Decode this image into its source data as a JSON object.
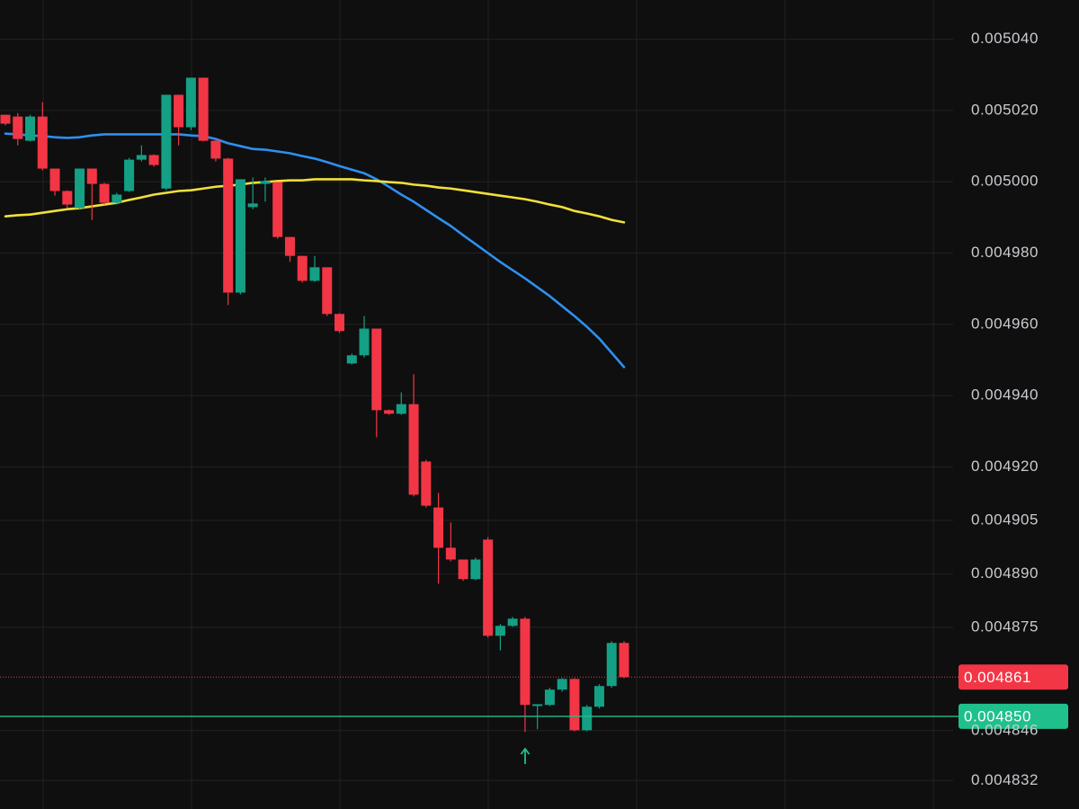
{
  "chart_data": {
    "type": "candlestick",
    "up_color": "#14a085",
    "down_color": "#f23645",
    "open": [
      0.0050188,
      0.0050183,
      0.0050115,
      0.0050183,
      0.0050037,
      0.0049974,
      0.0049926,
      0.0050037,
      0.0049994,
      0.0049941,
      0.0049974,
      0.0050062,
      0.0050075,
      0.0049981,
      0.0050244,
      0.0050153,
      0.0050292,
      0.0050115,
      0.0050065,
      0.0049689,
      0.0049929,
      0.0049994,
      0.0049999,
      0.0049845,
      0.0049792,
      0.0049722,
      0.004976,
      0.0049629,
      0.004949,
      0.0049513,
      0.0049588,
      0.0049359,
      0.0049349,
      0.0049376,
      0.0049215,
      0.0049086,
      0.0048973,
      0.004894,
      0.0048885,
      0.0048996,
      0.0048726,
      0.0048754,
      0.0048774,
      0.0048529,
      0.0048532,
      0.0048575,
      0.0048605,
      0.0048461,
      0.0048527,
      0.0048585,
      0.0048706
    ],
    "high": [
      0.0050188,
      0.0050193,
      0.0050188,
      0.0050223,
      0.0050037,
      0.0049976,
      0.0050037,
      0.0050037,
      0.0049997,
      0.0049969,
      0.0050067,
      0.0050102,
      0.0050077,
      0.0050244,
      0.0050244,
      0.0050292,
      0.0050292,
      0.005012,
      0.0050067,
      0.0050007,
      0.0050012,
      0.0050012,
      0.0049999,
      0.0049845,
      0.0049792,
      0.0049792,
      0.004976,
      0.0049631,
      0.0049518,
      0.0049623,
      0.0049588,
      0.0049361,
      0.0049409,
      0.004946,
      0.004922,
      0.0049127,
      0.0049044,
      0.004894,
      0.0048945,
      0.0049003,
      0.0048759,
      0.0048779,
      0.0048779,
      0.0048534,
      0.004858,
      0.0048607,
      0.0048607,
      0.0048532,
      0.004859,
      0.0048711,
      0.0048711
    ],
    "low": [
      0.0050158,
      0.0050102,
      0.0050113,
      0.0050032,
      0.0049961,
      0.0049926,
      0.0049921,
      0.0049893,
      0.0049936,
      0.0049936,
      0.0049971,
      0.0050057,
      0.0050042,
      0.0049976,
      0.0050102,
      0.0050145,
      0.0050113,
      0.0050057,
      0.0049654,
      0.0049684,
      0.0049923,
      0.0049944,
      0.004984,
      0.0049775,
      0.0049717,
      0.0049719,
      0.0049623,
      0.0049576,
      0.0049487,
      0.0049507,
      0.0049283,
      0.0049346,
      0.0049346,
      0.0049117,
      0.0049086,
      0.0048872,
      0.0048935,
      0.004888,
      0.0048882,
      0.0048721,
      0.0048685,
      0.0048751,
      0.0048456,
      0.0048464,
      0.0048529,
      0.0048569,
      0.0048458,
      0.0048458,
      0.0048522,
      0.004858,
      0.0048607
    ],
    "close": [
      0.0050163,
      0.005012,
      0.0050183,
      0.0050037,
      0.0049974,
      0.0049936,
      0.0050037,
      0.0049994,
      0.0049941,
      0.0049964,
      0.0050062,
      0.0050075,
      0.0050047,
      0.0050244,
      0.0050153,
      0.0050292,
      0.0050115,
      0.0050065,
      0.0049689,
      0.0050007,
      0.0049939,
      0.0050002,
      0.0049845,
      0.0049792,
      0.0049722,
      0.004976,
      0.0049629,
      0.0049581,
      0.0049513,
      0.0049588,
      0.0049359,
      0.0049349,
      0.0049376,
      0.0049122,
      0.0049091,
      0.0048973,
      0.004894,
      0.0048885,
      0.004894,
      0.0048726,
      0.0048754,
      0.0048774,
      0.0048532,
      0.0048534,
      0.0048575,
      0.0048605,
      0.0048461,
      0.0048527,
      0.0048585,
      0.0048706,
      0.004861
    ],
    "series": [
      {
        "color": "#2f8ff0",
        "values": [
          0.0050135,
          0.0050133,
          0.005013,
          0.0050128,
          0.0050125,
          0.0050123,
          0.0050125,
          0.005013,
          0.0050133,
          0.0050133,
          0.0050133,
          0.0050133,
          0.0050133,
          0.0050133,
          0.0050133,
          0.005013,
          0.0050128,
          0.005012,
          0.0050108,
          0.00501,
          0.0050092,
          0.005009,
          0.0050085,
          0.005008,
          0.0050072,
          0.0050065,
          0.0050055,
          0.0050044,
          0.0050034,
          0.0050024,
          0.0050007,
          0.0049986,
          0.0049964,
          0.0049944,
          0.0049921,
          0.0049898,
          0.0049876,
          0.004985,
          0.0049825,
          0.00498,
          0.0049775,
          0.0049752,
          0.0049729,
          0.0049704,
          0.0049679,
          0.0049651,
          0.0049623,
          0.0049593,
          0.004956,
          0.004952,
          0.004948
        ]
      },
      {
        "color": "#f2e03a",
        "values": [
          0.0049903,
          0.0049906,
          0.0049908,
          0.0049913,
          0.0049918,
          0.0049923,
          0.0049926,
          0.0049931,
          0.0049936,
          0.0049941,
          0.0049949,
          0.0049956,
          0.0049964,
          0.0049969,
          0.0049974,
          0.0049976,
          0.0049981,
          0.0049986,
          0.0049989,
          0.0049992,
          0.0049997,
          0.0049999,
          0.0050002,
          0.0050004,
          0.0050004,
          0.0050007,
          0.0050007,
          0.0050007,
          0.0050007,
          0.0050004,
          0.0050002,
          0.0049999,
          0.0049997,
          0.0049992,
          0.0049989,
          0.0049984,
          0.0049981,
          0.0049976,
          0.0049971,
          0.0049966,
          0.0049961,
          0.0049956,
          0.0049951,
          0.0049944,
          0.0049936,
          0.0049929,
          0.0049918,
          0.0049911,
          0.0049903,
          0.0049893,
          0.0049886
        ]
      }
    ],
    "ylim": [
      0.004824,
      0.005051
    ],
    "yticks": [
      {
        "value": 0.00504,
        "label": "0.005040"
      },
      {
        "value": 0.00502,
        "label": "0.005020"
      },
      {
        "value": 0.005,
        "label": "0.005000"
      },
      {
        "value": 0.00498,
        "label": "0.004980"
      },
      {
        "value": 0.00496,
        "label": "0.004960"
      },
      {
        "value": 0.00494,
        "label": "0.004940"
      },
      {
        "value": 0.00492,
        "label": "0.004920"
      },
      0.004905,
      {
        "value": 0.00489,
        "label": "0.004890"
      },
      0.004875,
      0.004846,
      0.004832
    ],
    "grid": true,
    "price_lines": [
      {
        "value": 0.004861,
        "color": "#f23645",
        "style": "dotted"
      },
      {
        "value": 0.00485,
        "label": "0.004850",
        "color": "#1fc08c",
        "style": "solid"
      }
    ]
  }
}
